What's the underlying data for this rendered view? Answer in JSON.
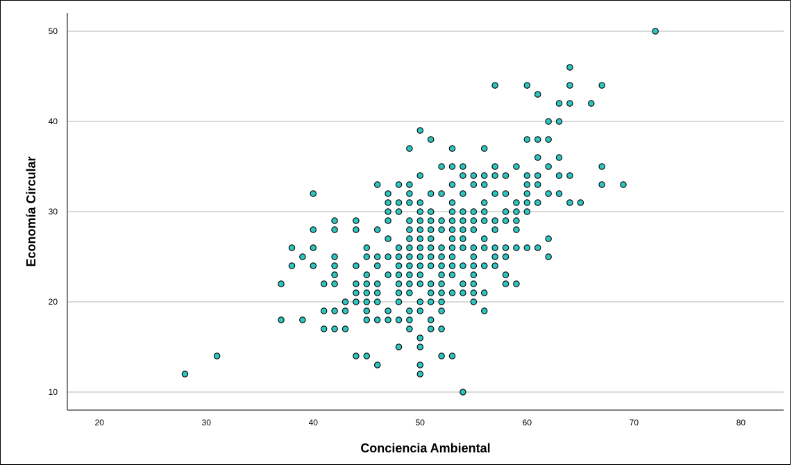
{
  "chart_data": {
    "type": "scatter",
    "xlabel": "Conciencia Ambiental",
    "ylabel": "Economía Circular",
    "xlim": [
      17,
      84
    ],
    "ylim": [
      8,
      52
    ],
    "x_ticks": [
      20,
      30,
      40,
      50,
      60,
      70,
      80
    ],
    "y_ticks": [
      10,
      20,
      30,
      40,
      50
    ],
    "grid": "horizontal",
    "marker_fill": "#2ec4c0",
    "marker_edge": "#000000",
    "points": [
      [
        72,
        50
      ],
      [
        64,
        46
      ],
      [
        57,
        44
      ],
      [
        60,
        44
      ],
      [
        64,
        44
      ],
      [
        67,
        44
      ],
      [
        61,
        43
      ],
      [
        63,
        42
      ],
      [
        64,
        42
      ],
      [
        66,
        42
      ],
      [
        62,
        40
      ],
      [
        63,
        40
      ],
      [
        50,
        39
      ],
      [
        51,
        38
      ],
      [
        60,
        38
      ],
      [
        61,
        38
      ],
      [
        62,
        38
      ],
      [
        49,
        37
      ],
      [
        53,
        37
      ],
      [
        56,
        37
      ],
      [
        61,
        36
      ],
      [
        63,
        36
      ],
      [
        52,
        35
      ],
      [
        53,
        35
      ],
      [
        54,
        35
      ],
      [
        57,
        35
      ],
      [
        59,
        35
      ],
      [
        62,
        35
      ],
      [
        67,
        35
      ],
      [
        50,
        34
      ],
      [
        54,
        34
      ],
      [
        55,
        34
      ],
      [
        56,
        34
      ],
      [
        57,
        34
      ],
      [
        58,
        34
      ],
      [
        60,
        34
      ],
      [
        61,
        34
      ],
      [
        63,
        34
      ],
      [
        64,
        34
      ],
      [
        46,
        33
      ],
      [
        48,
        33
      ],
      [
        49,
        33
      ],
      [
        53,
        33
      ],
      [
        55,
        33
      ],
      [
        56,
        33
      ],
      [
        60,
        33
      ],
      [
        61,
        33
      ],
      [
        67,
        33
      ],
      [
        69,
        33
      ],
      [
        40,
        32
      ],
      [
        47,
        32
      ],
      [
        49,
        32
      ],
      [
        51,
        32
      ],
      [
        52,
        32
      ],
      [
        54,
        32
      ],
      [
        57,
        32
      ],
      [
        58,
        32
      ],
      [
        60,
        32
      ],
      [
        62,
        32
      ],
      [
        63,
        32
      ],
      [
        47,
        31
      ],
      [
        48,
        31
      ],
      [
        49,
        31
      ],
      [
        50,
        31
      ],
      [
        53,
        31
      ],
      [
        56,
        31
      ],
      [
        59,
        31
      ],
      [
        60,
        31
      ],
      [
        61,
        31
      ],
      [
        64,
        31
      ],
      [
        65,
        31
      ],
      [
        47,
        30
      ],
      [
        48,
        30
      ],
      [
        50,
        30
      ],
      [
        51,
        30
      ],
      [
        53,
        30
      ],
      [
        54,
        30
      ],
      [
        55,
        30
      ],
      [
        56,
        30
      ],
      [
        58,
        30
      ],
      [
        59,
        30
      ],
      [
        60,
        30
      ],
      [
        42,
        29
      ],
      [
        44,
        29
      ],
      [
        47,
        29
      ],
      [
        49,
        29
      ],
      [
        50,
        29
      ],
      [
        51,
        29
      ],
      [
        52,
        29
      ],
      [
        53,
        29
      ],
      [
        54,
        29
      ],
      [
        55,
        29
      ],
      [
        56,
        29
      ],
      [
        57,
        29
      ],
      [
        58,
        29
      ],
      [
        59,
        29
      ],
      [
        40,
        28
      ],
      [
        42,
        28
      ],
      [
        44,
        28
      ],
      [
        46,
        28
      ],
      [
        49,
        28
      ],
      [
        50,
        28
      ],
      [
        51,
        28
      ],
      [
        52,
        28
      ],
      [
        53,
        28
      ],
      [
        54,
        28
      ],
      [
        55,
        28
      ],
      [
        57,
        28
      ],
      [
        59,
        28
      ],
      [
        47,
        27
      ],
      [
        49,
        27
      ],
      [
        50,
        27
      ],
      [
        51,
        27
      ],
      [
        53,
        27
      ],
      [
        54,
        27
      ],
      [
        56,
        27
      ],
      [
        62,
        27
      ],
      [
        38,
        26
      ],
      [
        40,
        26
      ],
      [
        45,
        26
      ],
      [
        48,
        26
      ],
      [
        49,
        26
      ],
      [
        50,
        26
      ],
      [
        51,
        26
      ],
      [
        52,
        26
      ],
      [
        53,
        26
      ],
      [
        54,
        26
      ],
      [
        55,
        26
      ],
      [
        56,
        26
      ],
      [
        57,
        26
      ],
      [
        58,
        26
      ],
      [
        59,
        26
      ],
      [
        60,
        26
      ],
      [
        61,
        26
      ],
      [
        39,
        25
      ],
      [
        42,
        25
      ],
      [
        45,
        25
      ],
      [
        46,
        25
      ],
      [
        47,
        25
      ],
      [
        48,
        25
      ],
      [
        49,
        25
      ],
      [
        50,
        25
      ],
      [
        51,
        25
      ],
      [
        52,
        25
      ],
      [
        53,
        25
      ],
      [
        55,
        25
      ],
      [
        57,
        25
      ],
      [
        58,
        25
      ],
      [
        62,
        25
      ],
      [
        38,
        24
      ],
      [
        40,
        24
      ],
      [
        42,
        24
      ],
      [
        44,
        24
      ],
      [
        46,
        24
      ],
      [
        48,
        24
      ],
      [
        49,
        24
      ],
      [
        50,
        24
      ],
      [
        51,
        24
      ],
      [
        52,
        24
      ],
      [
        53,
        24
      ],
      [
        54,
        24
      ],
      [
        55,
        24
      ],
      [
        56,
        24
      ],
      [
        57,
        24
      ],
      [
        42,
        23
      ],
      [
        45,
        23
      ],
      [
        47,
        23
      ],
      [
        48,
        23
      ],
      [
        49,
        23
      ],
      [
        50,
        23
      ],
      [
        52,
        23
      ],
      [
        53,
        23
      ],
      [
        55,
        23
      ],
      [
        58,
        23
      ],
      [
        37,
        22
      ],
      [
        41,
        22
      ],
      [
        42,
        22
      ],
      [
        44,
        22
      ],
      [
        45,
        22
      ],
      [
        46,
        22
      ],
      [
        48,
        22
      ],
      [
        49,
        22
      ],
      [
        50,
        22
      ],
      [
        51,
        22
      ],
      [
        52,
        22
      ],
      [
        54,
        22
      ],
      [
        55,
        22
      ],
      [
        58,
        22
      ],
      [
        59,
        22
      ],
      [
        44,
        21
      ],
      [
        45,
        21
      ],
      [
        46,
        21
      ],
      [
        48,
        21
      ],
      [
        49,
        21
      ],
      [
        51,
        21
      ],
      [
        52,
        21
      ],
      [
        53,
        21
      ],
      [
        54,
        21
      ],
      [
        55,
        21
      ],
      [
        56,
        21
      ],
      [
        43,
        20
      ],
      [
        44,
        20
      ],
      [
        45,
        20
      ],
      [
        46,
        20
      ],
      [
        48,
        20
      ],
      [
        50,
        20
      ],
      [
        51,
        20
      ],
      [
        52,
        20
      ],
      [
        55,
        20
      ],
      [
        41,
        19
      ],
      [
        42,
        19
      ],
      [
        43,
        19
      ],
      [
        45,
        19
      ],
      [
        47,
        19
      ],
      [
        49,
        19
      ],
      [
        50,
        19
      ],
      [
        52,
        19
      ],
      [
        56,
        19
      ],
      [
        37,
        18
      ],
      [
        39,
        18
      ],
      [
        45,
        18
      ],
      [
        46,
        18
      ],
      [
        47,
        18
      ],
      [
        48,
        18
      ],
      [
        49,
        18
      ],
      [
        51,
        18
      ],
      [
        41,
        17
      ],
      [
        42,
        17
      ],
      [
        43,
        17
      ],
      [
        49,
        17
      ],
      [
        51,
        17
      ],
      [
        52,
        17
      ],
      [
        50,
        16
      ],
      [
        48,
        15
      ],
      [
        50,
        15
      ],
      [
        31,
        14
      ],
      [
        44,
        14
      ],
      [
        45,
        14
      ],
      [
        52,
        14
      ],
      [
        53,
        14
      ],
      [
        46,
        13
      ],
      [
        50,
        13
      ],
      [
        28,
        12
      ],
      [
        50,
        12
      ],
      [
        54,
        10
      ]
    ]
  }
}
